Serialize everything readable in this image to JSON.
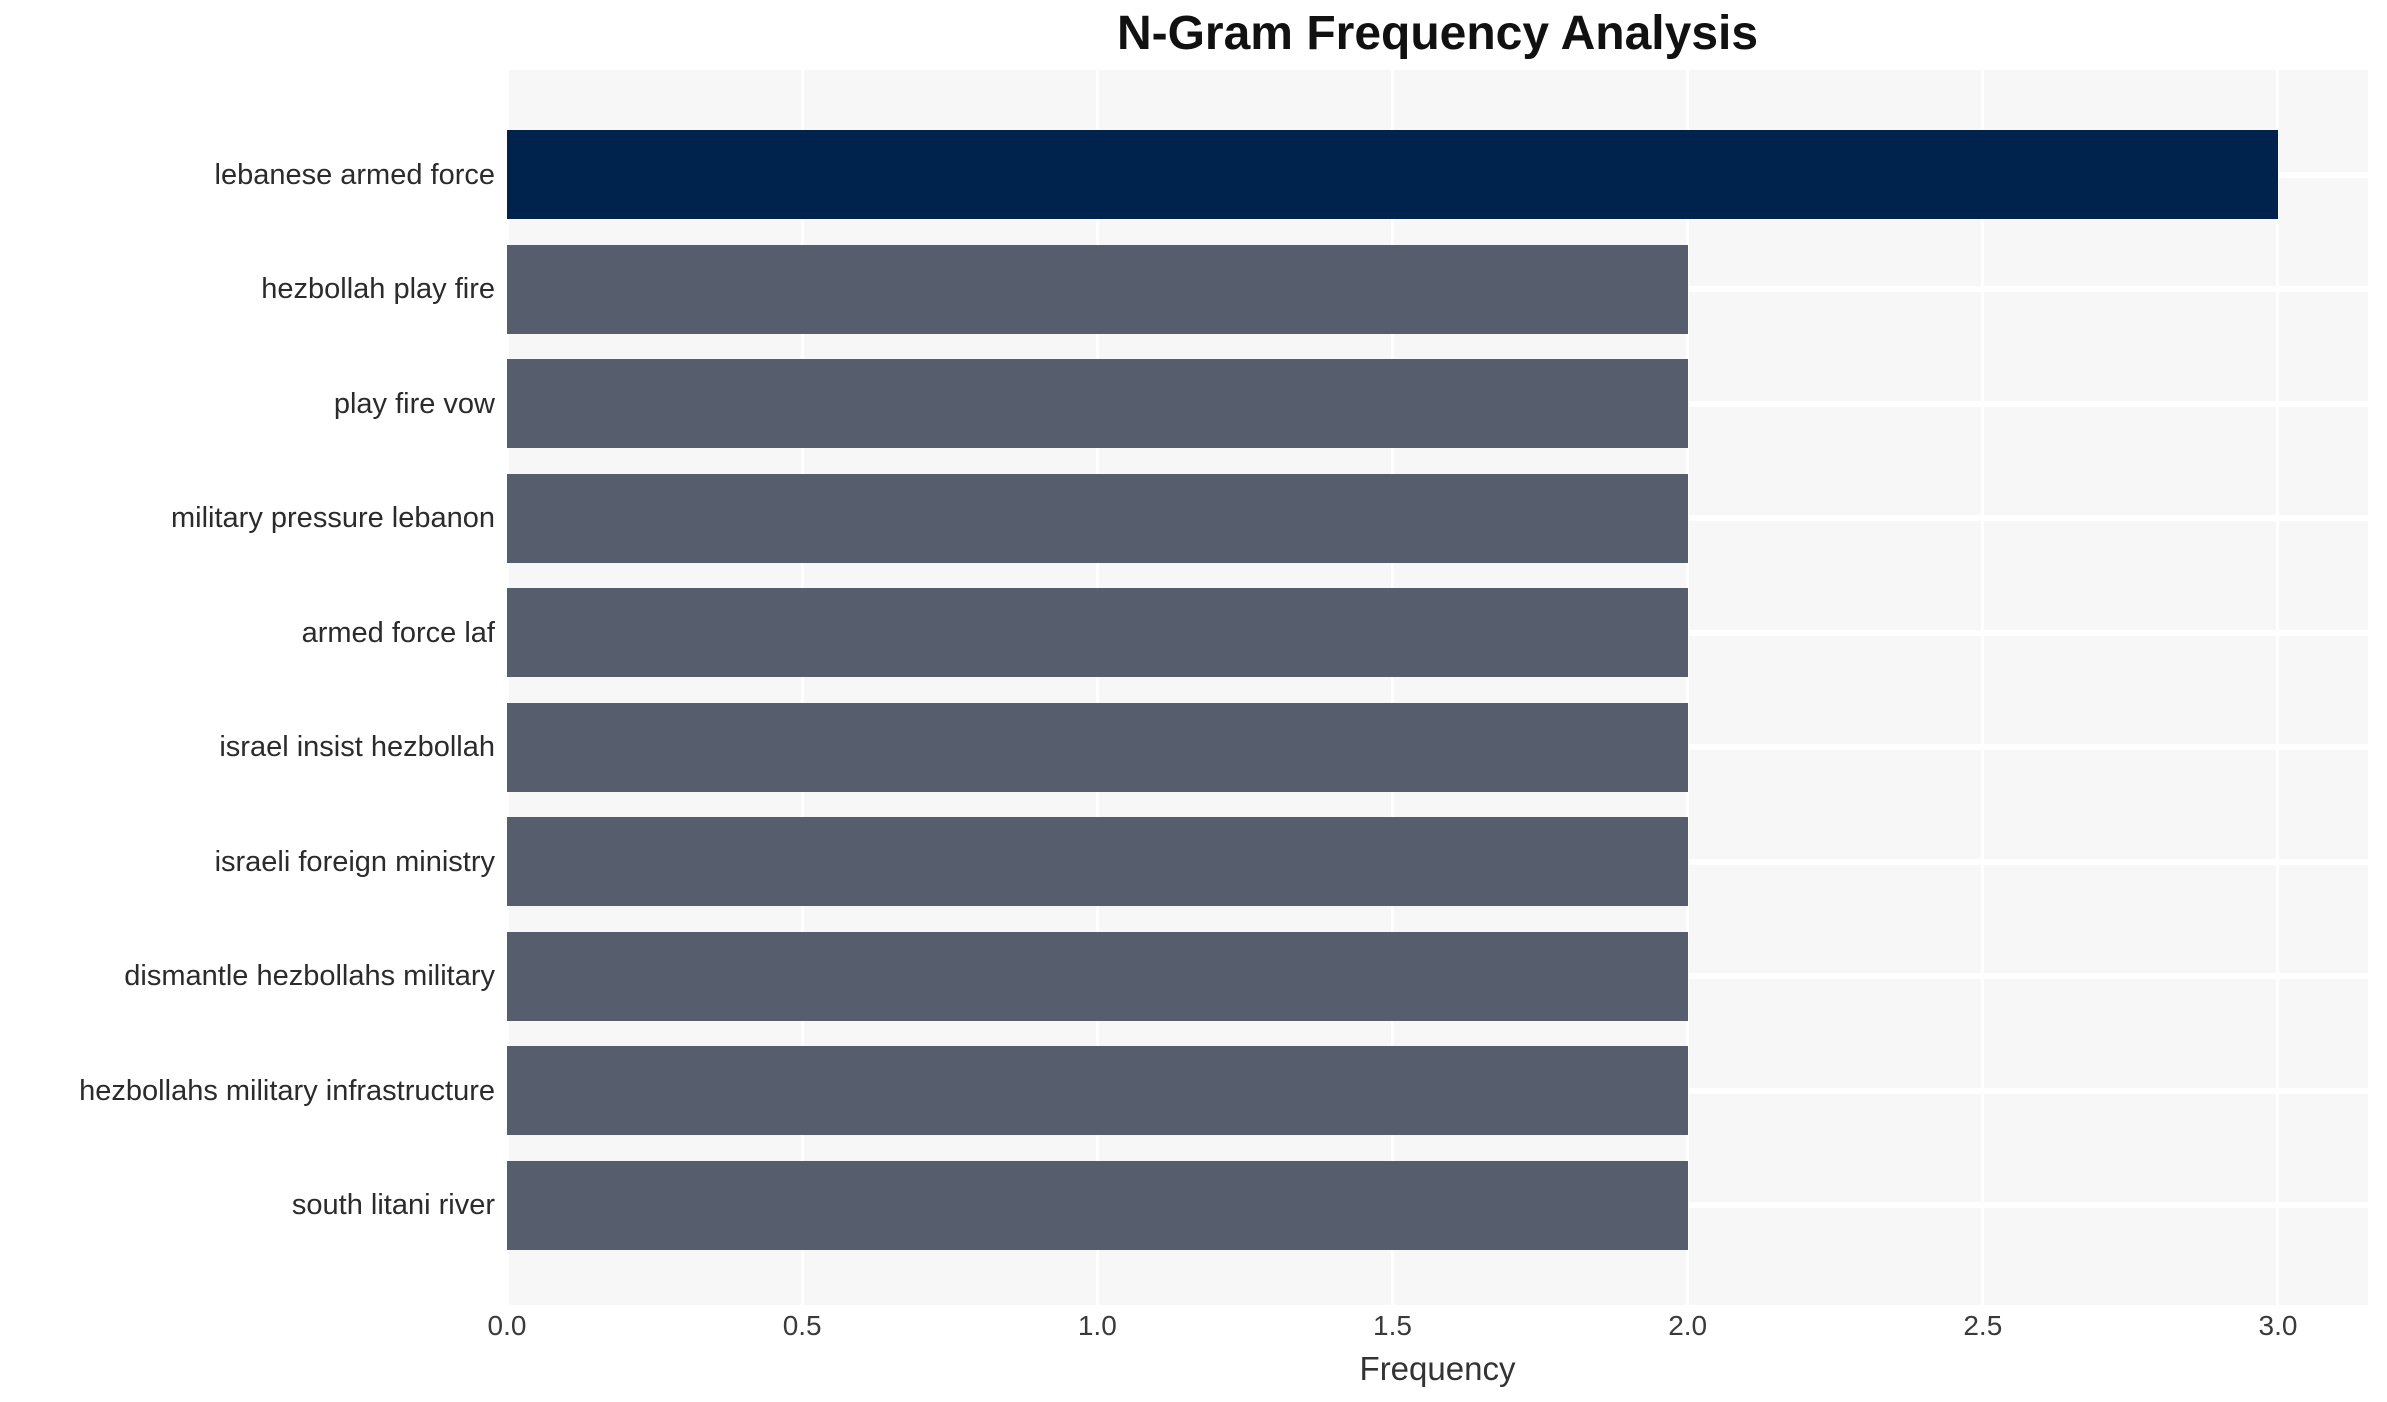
{
  "chart_data": {
    "type": "bar",
    "orientation": "horizontal",
    "title": "N-Gram Frequency Analysis",
    "xlabel": "Frequency",
    "ylabel": "",
    "categories": [
      "lebanese armed force",
      "hezbollah play fire",
      "play fire vow",
      "military pressure lebanon",
      "armed force laf",
      "israel insist hezbollah",
      "israeli foreign ministry",
      "dismantle hezbollahs military",
      "hezbollahs military infrastructure",
      "south litani river"
    ],
    "values": [
      3,
      2,
      2,
      2,
      2,
      2,
      2,
      2,
      2,
      2
    ],
    "bar_colors": [
      "#00234d",
      "#565d6c",
      "#565d6c",
      "#565d6c",
      "#565d6c",
      "#565d6c",
      "#565d6c",
      "#565d6c",
      "#565d6c",
      "#565d6c"
    ],
    "xticks": [
      "0.0",
      "0.5",
      "1.0",
      "1.5",
      "2.0",
      "2.5",
      "3.0"
    ],
    "xlim": [
      0,
      3.15
    ],
    "grid": "on",
    "grid_color": "#ffffff",
    "plot_background": "#f7f7f8",
    "legend": "none"
  }
}
